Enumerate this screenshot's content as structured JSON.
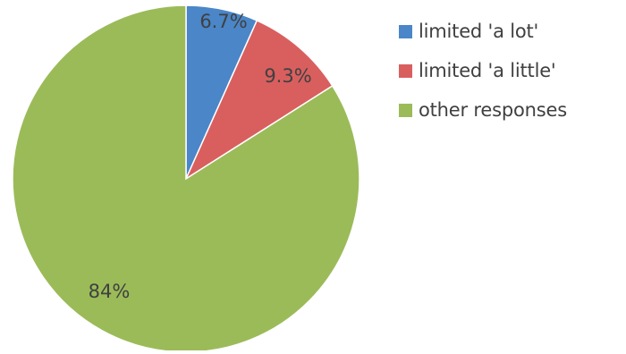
{
  "chart_data": {
    "type": "pie",
    "categories": [
      "limited 'a lot'",
      "limited 'a little'",
      "other responses"
    ],
    "values": [
      6.7,
      9.3,
      84
    ],
    "data_labels": [
      "6.7%",
      "9.3%",
      "84%"
    ],
    "colors": [
      "#4A86C8",
      "#D95F5F",
      "#9BBB59"
    ],
    "legend_position": "right",
    "start_angle": "12 o'clock, clockwise"
  }
}
